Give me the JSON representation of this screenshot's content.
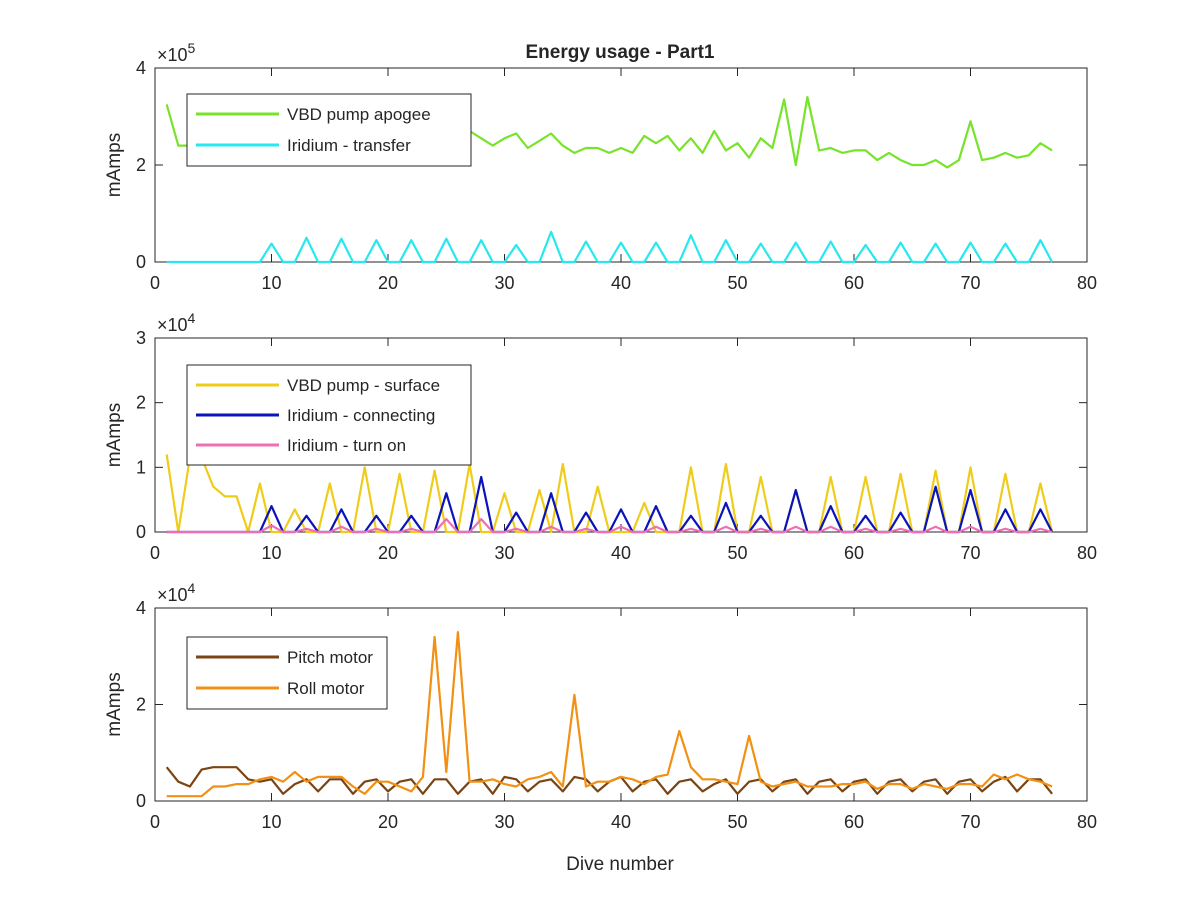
{
  "figure": {
    "title": "Energy usage - Part1",
    "xlabel": "Dive number"
  },
  "chart_data": [
    {
      "type": "line",
      "title": "Energy usage - Part1",
      "xlabel": "",
      "ylabel": "mAmps",
      "y_multiplier": "×10",
      "y_exponent": "5",
      "scale": 100000,
      "xlim": [
        0,
        80
      ],
      "ylim": [
        0,
        400000
      ],
      "xticks": [
        0,
        10,
        20,
        30,
        40,
        50,
        60,
        70,
        80
      ],
      "yticks": [
        0,
        200000,
        400000
      ],
      "ytick_labels": [
        "0",
        "2",
        "4"
      ],
      "grid": false,
      "legend_position": "top-left",
      "x": [
        1,
        2,
        3,
        4,
        5,
        6,
        7,
        8,
        9,
        10,
        11,
        12,
        13,
        14,
        15,
        16,
        17,
        18,
        19,
        20,
        21,
        22,
        23,
        24,
        25,
        26,
        27,
        28,
        29,
        30,
        31,
        32,
        33,
        34,
        35,
        36,
        37,
        38,
        39,
        40,
        41,
        42,
        43,
        44,
        45,
        46,
        47,
        48,
        49,
        50,
        51,
        52,
        53,
        54,
        55,
        56,
        57,
        58,
        59,
        60,
        61,
        62,
        63,
        64,
        65,
        66,
        67,
        68,
        69,
        70,
        71,
        72,
        73,
        74,
        75,
        76,
        77
      ],
      "series": [
        {
          "name": "VBD pump apogee",
          "color": "#77e32a",
          "values": [
            325000,
            240000,
            240000,
            240000,
            255000,
            270000,
            245000,
            260000,
            250000,
            240000,
            265000,
            240000,
            255000,
            260000,
            230000,
            275000,
            240000,
            260000,
            255000,
            250000,
            245000,
            265000,
            240000,
            250000,
            255000,
            260000,
            270000,
            255000,
            240000,
            255000,
            265000,
            235000,
            250000,
            265000,
            240000,
            225000,
            235000,
            235000,
            225000,
            235000,
            225000,
            260000,
            245000,
            260000,
            230000,
            255000,
            225000,
            270000,
            230000,
            245000,
            215000,
            255000,
            235000,
            335000,
            200000,
            340000,
            230000,
            235000,
            225000,
            230000,
            230000,
            210000,
            225000,
            210000,
            200000,
            200000,
            210000,
            195000,
            210000,
            290000,
            210000,
            215000,
            225000,
            215000,
            220000,
            245000,
            230000
          ]
        },
        {
          "name": "Iridium - transfer",
          "color": "#27e8ef",
          "values": [
            0,
            0,
            0,
            0,
            0,
            0,
            0,
            0,
            0,
            38000,
            0,
            0,
            50000,
            0,
            0,
            48000,
            0,
            0,
            45000,
            0,
            0,
            45000,
            0,
            0,
            48000,
            0,
            0,
            45000,
            0,
            0,
            35000,
            0,
            0,
            62000,
            0,
            0,
            42000,
            0,
            0,
            40000,
            0,
            0,
            40000,
            0,
            0,
            55000,
            0,
            0,
            45000,
            0,
            0,
            38000,
            0,
            0,
            40000,
            0,
            0,
            42000,
            0,
            0,
            35000,
            0,
            0,
            40000,
            0,
            0,
            38000,
            0,
            0,
            40000,
            0,
            0,
            38000,
            0,
            0,
            45000,
            0
          ]
        }
      ]
    },
    {
      "type": "line",
      "title": "",
      "xlabel": "",
      "ylabel": "mAmps",
      "y_multiplier": "×10",
      "y_exponent": "4",
      "scale": 10000,
      "xlim": [
        0,
        80
      ],
      "ylim": [
        0,
        30000
      ],
      "xticks": [
        0,
        10,
        20,
        30,
        40,
        50,
        60,
        70,
        80
      ],
      "yticks": [
        0,
        10000,
        20000,
        30000
      ],
      "ytick_labels": [
        "0",
        "1",
        "2",
        "3"
      ],
      "grid": false,
      "legend_position": "top-left",
      "x": [
        1,
        2,
        3,
        4,
        5,
        6,
        7,
        8,
        9,
        10,
        11,
        12,
        13,
        14,
        15,
        16,
        17,
        18,
        19,
        20,
        21,
        22,
        23,
        24,
        25,
        26,
        27,
        28,
        29,
        30,
        31,
        32,
        33,
        34,
        35,
        36,
        37,
        38,
        39,
        40,
        41,
        42,
        43,
        44,
        45,
        46,
        47,
        48,
        49,
        50,
        51,
        52,
        53,
        54,
        55,
        56,
        57,
        58,
        59,
        60,
        61,
        62,
        63,
        64,
        65,
        66,
        67,
        68,
        69,
        70,
        71,
        72,
        73,
        74,
        75,
        76,
        77
      ],
      "series": [
        {
          "name": "VBD pump - surface",
          "color": "#f0cc1a",
          "values": [
            12000,
            0,
            11500,
            11500,
            7000,
            5500,
            5500,
            0,
            7500,
            0,
            0,
            3500,
            0,
            0,
            7500,
            0,
            0,
            10000,
            0,
            0,
            9000,
            0,
            0,
            9500,
            0,
            0,
            10500,
            0,
            0,
            6000,
            0,
            0,
            6500,
            0,
            10500,
            0,
            0,
            7000,
            0,
            0,
            0,
            4500,
            0,
            0,
            0,
            10000,
            0,
            0,
            10500,
            0,
            0,
            8500,
            0,
            0,
            6500,
            0,
            0,
            8500,
            0,
            0,
            8500,
            0,
            0,
            9000,
            0,
            0,
            9500,
            0,
            0,
            10000,
            0,
            0,
            9000,
            0,
            0,
            7500,
            0
          ]
        },
        {
          "name": "Iridium - connecting",
          "color": "#0a14b8",
          "values": [
            0,
            0,
            0,
            0,
            0,
            0,
            0,
            0,
            0,
            4000,
            0,
            0,
            2500,
            0,
            0,
            3500,
            0,
            0,
            2500,
            0,
            0,
            2500,
            0,
            0,
            6000,
            0,
            0,
            8500,
            0,
            0,
            3000,
            0,
            0,
            6000,
            0,
            0,
            3000,
            0,
            0,
            3500,
            0,
            0,
            4000,
            0,
            0,
            2500,
            0,
            0,
            4500,
            0,
            0,
            2500,
            0,
            0,
            6500,
            0,
            0,
            4000,
            0,
            0,
            2500,
            0,
            0,
            3000,
            0,
            0,
            7000,
            0,
            0,
            6500,
            0,
            0,
            3500,
            0,
            0,
            3500,
            0
          ]
        },
        {
          "name": "Iridium - turn on",
          "color": "#ee6fb4",
          "values": [
            0,
            0,
            0,
            0,
            0,
            0,
            0,
            0,
            0,
            1000,
            0,
            0,
            500,
            0,
            0,
            800,
            0,
            0,
            500,
            0,
            0,
            500,
            0,
            0,
            2000,
            0,
            0,
            2000,
            0,
            0,
            500,
            0,
            0,
            800,
            0,
            0,
            500,
            0,
            0,
            800,
            0,
            0,
            800,
            0,
            0,
            500,
            0,
            0,
            800,
            0,
            0,
            500,
            0,
            0,
            800,
            0,
            0,
            800,
            0,
            0,
            500,
            0,
            0,
            500,
            0,
            0,
            800,
            0,
            0,
            800,
            0,
            0,
            500,
            0,
            0,
            500,
            0
          ]
        }
      ]
    },
    {
      "type": "line",
      "title": "",
      "xlabel": "Dive number",
      "ylabel": "mAmps",
      "y_multiplier": "×10",
      "y_exponent": "4",
      "scale": 10000,
      "xlim": [
        0,
        80
      ],
      "ylim": [
        0,
        40000
      ],
      "xticks": [
        0,
        10,
        20,
        30,
        40,
        50,
        60,
        70,
        80
      ],
      "yticks": [
        0,
        20000,
        40000
      ],
      "ytick_labels": [
        "0",
        "2",
        "4"
      ],
      "grid": false,
      "legend_position": "top-left",
      "x": [
        1,
        2,
        3,
        4,
        5,
        6,
        7,
        8,
        9,
        10,
        11,
        12,
        13,
        14,
        15,
        16,
        17,
        18,
        19,
        20,
        21,
        22,
        23,
        24,
        25,
        26,
        27,
        28,
        29,
        30,
        31,
        32,
        33,
        34,
        35,
        36,
        37,
        38,
        39,
        40,
        41,
        42,
        43,
        44,
        45,
        46,
        47,
        48,
        49,
        50,
        51,
        52,
        53,
        54,
        55,
        56,
        57,
        58,
        59,
        60,
        61,
        62,
        63,
        64,
        65,
        66,
        67,
        68,
        69,
        70,
        71,
        72,
        73,
        74,
        75,
        76,
        77
      ],
      "series": [
        {
          "name": "Pitch motor",
          "color": "#7a4512",
          "values": [
            7000,
            4000,
            3000,
            6500,
            7000,
            7000,
            7000,
            4500,
            4000,
            4500,
            1500,
            3500,
            4500,
            2000,
            4500,
            4500,
            1500,
            4000,
            4500,
            2000,
            4000,
            4500,
            1500,
            4500,
            4500,
            1500,
            4000,
            4500,
            1500,
            5000,
            4500,
            2000,
            4000,
            4500,
            2000,
            5000,
            4500,
            2000,
            4000,
            5000,
            2000,
            4000,
            4500,
            1500,
            4000,
            4500,
            2000,
            3500,
            4500,
            1500,
            4000,
            4500,
            2000,
            4000,
            4500,
            1500,
            4000,
            4500,
            2000,
            4000,
            4500,
            1500,
            4000,
            4500,
            2000,
            4000,
            4500,
            1500,
            4000,
            4500,
            2000,
            4000,
            5000,
            2000,
            4500,
            4500,
            1500
          ]
        },
        {
          "name": "Roll motor",
          "color": "#f29014",
          "values": [
            1000,
            1000,
            1000,
            1000,
            3000,
            3000,
            3500,
            3500,
            4500,
            5000,
            4000,
            6000,
            4000,
            5000,
            5000,
            5000,
            3000,
            1500,
            4000,
            4000,
            3000,
            2000,
            5000,
            34000,
            6000,
            35000,
            4000,
            4000,
            4500,
            3500,
            3000,
            4500,
            5000,
            6000,
            3000,
            22000,
            3000,
            4000,
            4000,
            5000,
            4500,
            3500,
            5000,
            5500,
            14500,
            7000,
            4500,
            4500,
            4000,
            3500,
            13500,
            4000,
            3000,
            3500,
            4000,
            3000,
            3000,
            3000,
            3500,
            3500,
            4000,
            2500,
            3500,
            3500,
            2500,
            3500,
            3000,
            2500,
            3500,
            3500,
            3000,
            5500,
            4500,
            5500,
            4500,
            4000,
            3000
          ]
        }
      ]
    }
  ]
}
